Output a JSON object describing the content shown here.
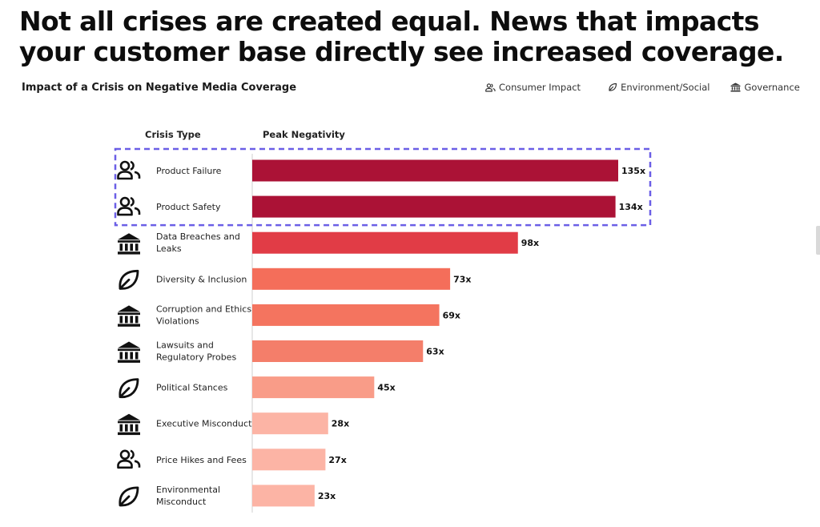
{
  "headline": {
    "line1": "Not all crises are created equal. News that impacts",
    "line2": "your customer base directly see increased coverage."
  },
  "legend": [
    {
      "label": "Consumer Impact",
      "icon": "people-icon"
    },
    {
      "label": "Environment/Social",
      "icon": "leaf-icon"
    },
    {
      "label": "Governance",
      "icon": "bank-icon"
    }
  ],
  "chart_data": {
    "type": "bar",
    "orientation": "horizontal",
    "title": "Impact of a Crisis on Negative Media Coverage",
    "category_header": "Crisis Type",
    "value_header": "Peak Negativity",
    "value_suffix": "x",
    "xlim": [
      0,
      135
    ],
    "highlighted_rows": [
      0,
      1
    ],
    "rows": [
      {
        "label": [
          "Product Failure"
        ],
        "value": 135,
        "value_label": "135x",
        "group": "Consumer Impact",
        "icon": "people-icon",
        "color": "#ab1236"
      },
      {
        "label": [
          "Product Safety"
        ],
        "value": 134,
        "value_label": "134x",
        "group": "Consumer Impact",
        "icon": "people-icon",
        "color": "#ab1236"
      },
      {
        "label": [
          "Data Breaches and",
          "Leaks"
        ],
        "value": 98,
        "value_label": "98x",
        "group": "Governance",
        "icon": "bank-icon",
        "color": "#e13c46"
      },
      {
        "label": [
          "Diversity & Inclusion"
        ],
        "value": 73,
        "value_label": "73x",
        "group": "Environment/Social",
        "icon": "leaf-icon",
        "color": "#f46e5a"
      },
      {
        "label": [
          "Corruption and Ethics",
          "Violations"
        ],
        "value": 69,
        "value_label": "69x",
        "group": "Governance",
        "icon": "bank-icon",
        "color": "#f4745f"
      },
      {
        "label": [
          "Lawsuits and",
          "Regulatory Probes"
        ],
        "value": 63,
        "value_label": "63x",
        "group": "Governance",
        "icon": "bank-icon",
        "color": "#f47e6a"
      },
      {
        "label": [
          "Political Stances"
        ],
        "value": 45,
        "value_label": "45x",
        "group": "Environment/Social",
        "icon": "leaf-icon",
        "color": "#f99c88"
      },
      {
        "label": [
          "Executive Misconduct"
        ],
        "value": 28,
        "value_label": "28x",
        "group": "Governance",
        "icon": "bank-icon",
        "color": "#fcb4a5"
      },
      {
        "label": [
          "Price Hikes and Fees"
        ],
        "value": 27,
        "value_label": "27x",
        "group": "Consumer Impact",
        "icon": "people-icon",
        "color": "#fcb4a5"
      },
      {
        "label": [
          "Environmental",
          "Misconduct"
        ],
        "value": 23,
        "value_label": "23x",
        "group": "Environment/Social",
        "icon": "leaf-icon",
        "color": "#fcb4a5"
      }
    ],
    "highlight_color": "#6b5fe6"
  }
}
